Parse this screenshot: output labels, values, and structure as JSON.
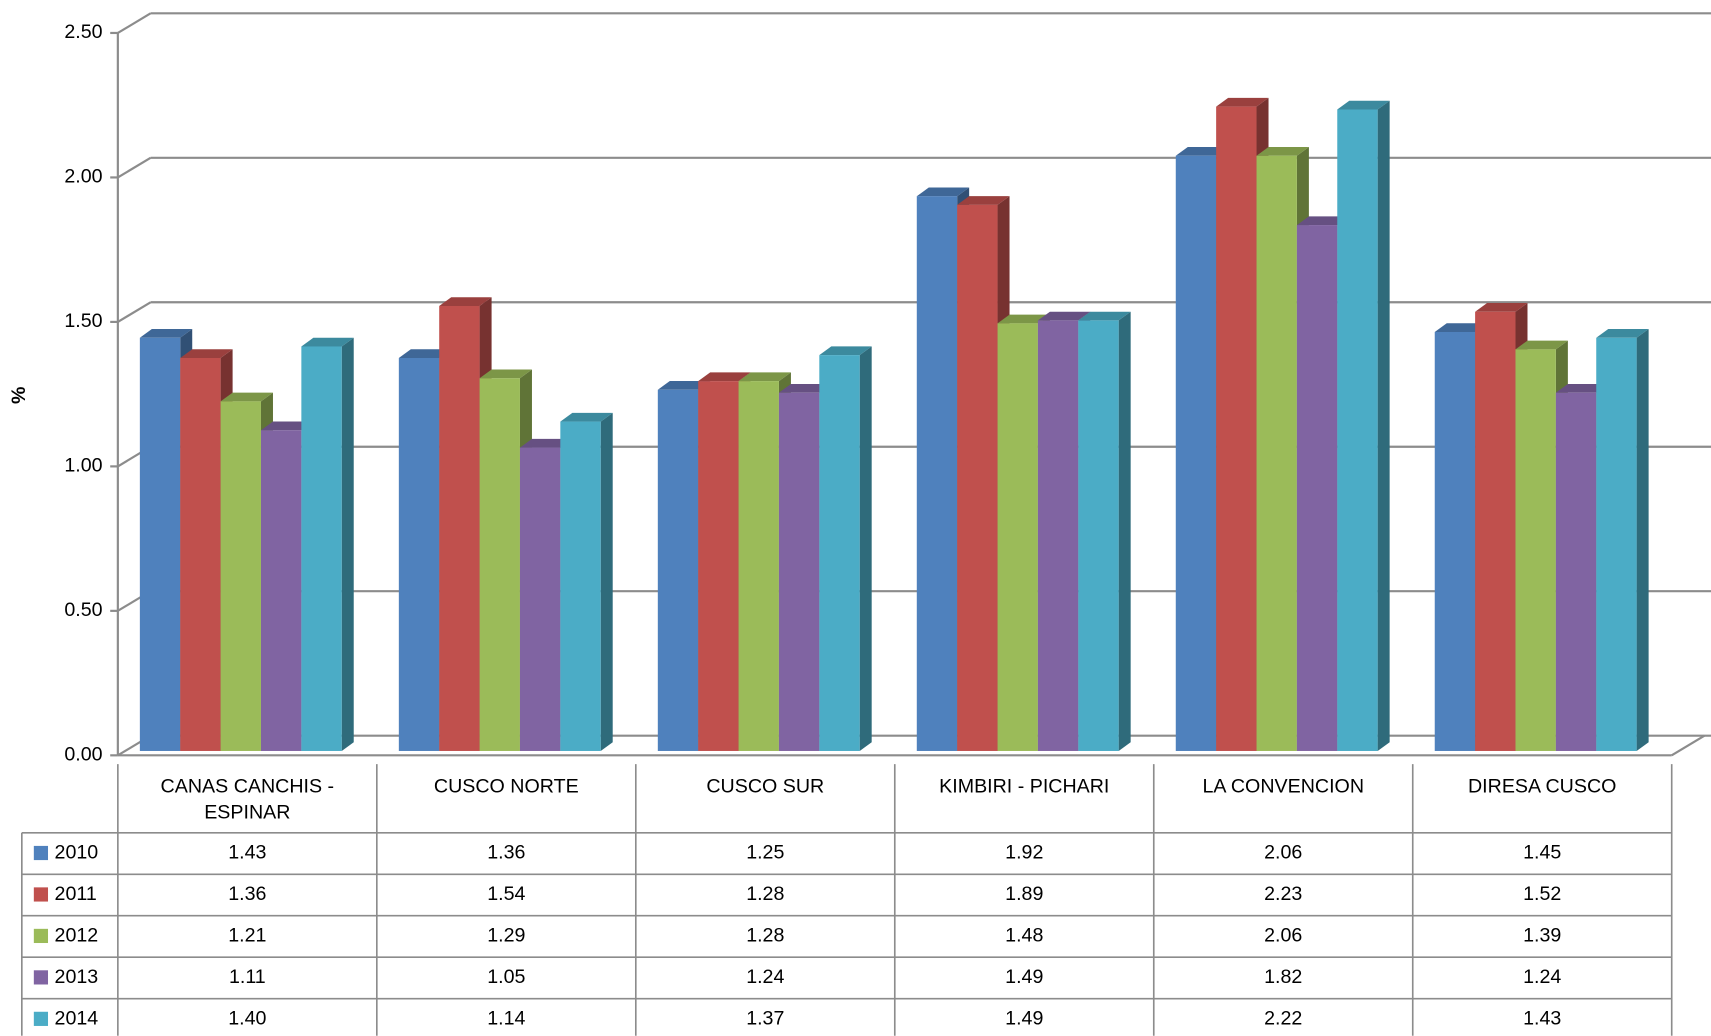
{
  "chart_data": {
    "type": "bar3d",
    "y_label": "%",
    "categories": [
      "CANAS CANCHIS - ESPINAR",
      "CUSCO NORTE",
      "CUSCO SUR",
      "KIMBIRI - PICHARI",
      "LA CONVENCION",
      "DIRESA CUSCO"
    ],
    "series": [
      {
        "name": "2010",
        "color": "#4f81bd",
        "values": [
          1.43,
          1.36,
          1.25,
          1.92,
          2.06,
          1.45
        ],
        "value_labels": [
          "1.43",
          "1.36",
          "1.25",
          "1.92",
          "2.06",
          "1.45"
        ]
      },
      {
        "name": "2011",
        "color": "#c0504d",
        "values": [
          1.36,
          1.54,
          1.28,
          1.89,
          2.23,
          1.52
        ],
        "value_labels": [
          "1.36",
          "1.54",
          "1.28",
          "1.89",
          "2.23",
          "1.52"
        ]
      },
      {
        "name": "2012",
        "color": "#9bbb59",
        "values": [
          1.21,
          1.29,
          1.28,
          1.48,
          2.06,
          1.39
        ],
        "value_labels": [
          "1.21",
          "1.29",
          "1.28",
          "1.48",
          "2.06",
          "1.39"
        ]
      },
      {
        "name": "2013",
        "color": "#8064a2",
        "values": [
          1.11,
          1.05,
          1.24,
          1.49,
          1.82,
          1.24
        ],
        "value_labels": [
          "1.11",
          "1.05",
          "1.24",
          "1.49",
          "1.82",
          "1.24"
        ]
      },
      {
        "name": "2014",
        "color": "#4bacc6",
        "values": [
          1.4,
          1.14,
          1.37,
          1.49,
          2.22,
          1.43
        ],
        "value_labels": [
          "1.40",
          "1.14",
          "1.37",
          "1.49",
          "2.22",
          "1.43"
        ]
      }
    ],
    "ylim": [
      0,
      2.5
    ],
    "yticks": [
      {
        "value": 0,
        "label": "0.00"
      },
      {
        "value": 0.5,
        "label": "0.50"
      },
      {
        "value": 1,
        "label": "1.00"
      },
      {
        "value": 1.5,
        "label": "1.50"
      },
      {
        "value": 2,
        "label": "2.00"
      },
      {
        "value": 2.5,
        "label": "2.50"
      }
    ],
    "grid": true
  }
}
